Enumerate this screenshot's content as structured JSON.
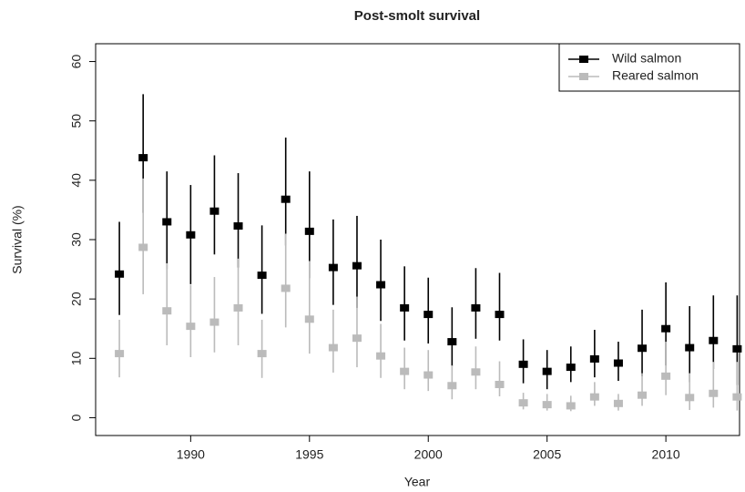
{
  "chart_data": {
    "type": "errorbar",
    "title": "Post-smolt survival",
    "x_label": "Year",
    "y_label": "Survival (%)",
    "x": [
      1987,
      1988,
      1989,
      1990,
      1991,
      1992,
      1993,
      1994,
      1995,
      1996,
      1997,
      1998,
      1999,
      2000,
      2001,
      2002,
      2003,
      2004,
      2005,
      2006,
      2007,
      2008,
      2009,
      2010,
      2011,
      2012,
      2013
    ],
    "series": [
      {
        "name": "Wild salmon",
        "color": "#000000",
        "values": [
          24.2,
          43.8,
          33,
          30.8,
          34.8,
          32.3,
          24,
          36.8,
          31.4,
          25.3,
          25.6,
          22.4,
          18.5,
          17.4,
          12.8,
          18.5,
          17.4,
          9,
          7.8,
          8.5,
          9.9,
          9.2,
          11.7,
          15,
          11.8,
          13,
          11.6
        ],
        "lower": [
          17.3,
          34.5,
          25,
          22.5,
          27.5,
          25.3,
          17.5,
          29,
          23.5,
          19,
          18.5,
          16.3,
          13,
          12.5,
          8.7,
          13.3,
          13,
          5.8,
          4.8,
          6,
          6.8,
          6.2,
          7,
          8.8,
          6,
          8.2,
          5.5
        ],
        "upper": [
          33,
          54.5,
          41.5,
          39.2,
          44.2,
          41.2,
          32.4,
          47.2,
          41.5,
          33.4,
          34,
          30,
          25.5,
          23.6,
          18.6,
          25.2,
          24.4,
          13.2,
          11.4,
          12,
          14.8,
          12.8,
          18.2,
          22.8,
          18.8,
          20.6,
          20.6
        ]
      },
      {
        "name": "Reared salmon",
        "color": "#bbbbbb",
        "values": [
          10.8,
          28.7,
          18,
          15.4,
          16.1,
          18.5,
          10.8,
          21.8,
          16.6,
          11.8,
          13.4,
          10.4,
          7.8,
          7.2,
          5.4,
          7.7,
          5.6,
          2.5,
          2.2,
          2,
          3.5,
          2.4,
          3.8,
          7,
          3.4,
          4.1,
          3.5
        ],
        "lower": [
          6.8,
          20.8,
          12.2,
          10.2,
          11,
          12.2,
          6.7,
          15.2,
          10.8,
          7.6,
          8.5,
          6.7,
          4.8,
          4.5,
          3.1,
          4.8,
          3.6,
          1.4,
          1.2,
          1.1,
          2,
          1.2,
          2,
          3.8,
          1.3,
          1.7,
          1.2
        ],
        "upper": [
          16.5,
          40.3,
          26,
          22.4,
          23.7,
          26.8,
          16.5,
          31,
          26.4,
          18.2,
          20.4,
          15.8,
          11.8,
          11.4,
          8.8,
          12,
          9.5,
          4.2,
          4,
          3.7,
          6,
          4,
          7.5,
          12.8,
          7.5,
          9.4,
          9.4
        ]
      }
    ],
    "xlim": [
      1986,
      2013.1
    ],
    "xticks": [
      1990,
      1995,
      2000,
      2005,
      2010
    ],
    "ylim": [
      -3,
      63
    ],
    "yticks": [
      0,
      10,
      20,
      30,
      40,
      50,
      60
    ],
    "legend": "top-right"
  }
}
